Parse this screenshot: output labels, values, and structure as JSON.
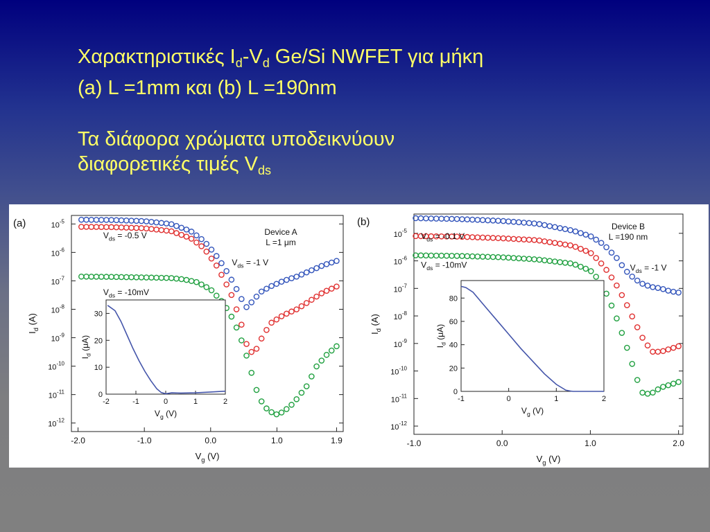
{
  "slide": {
    "title_line1_parts": [
      "Χαρακτηριστικές I",
      "d",
      "-V",
      "d",
      " Ge/Si NWFET για μήκη"
    ],
    "title_line2": "(a) L =1mm και (b) L =190nm",
    "subtitle_line1": "Τα διάφορα χρώματα υποδεικνύουν",
    "subtitle_line2_parts": [
      "διαφορετικές τιμές V",
      "ds"
    ]
  },
  "colors": {
    "blue": "#3355bb",
    "red": "#e03030",
    "green": "#20a040",
    "inset_line": "#4455aa",
    "title": "#ffff66"
  },
  "chart_data": [
    {
      "type": "scatter",
      "panel_label": "(a)",
      "device_label": [
        "Device A",
        "L =1 μm"
      ],
      "ylabel": "Id (A)",
      "xlabel": "Vg (V)",
      "xlim": [
        -2.1,
        2.0
      ],
      "ylim_log10": [
        -12.3,
        -4.7
      ],
      "xticks": [
        -2.0,
        -1.0,
        0.0,
        1.0,
        1.9
      ],
      "xtick_labels": [
        "-2.0",
        "-1.0",
        "0.0",
        "1.0",
        "1.9"
      ],
      "ytick_exponents": [
        -5,
        -6,
        -7,
        -8,
        -9,
        -10,
        -11,
        -12
      ],
      "annotations": [
        {
          "text": "Vds = -0.5 V",
          "x": -1.62,
          "y_log": -5.5
        },
        {
          "text": "Vds = -1 V",
          "x": 0.32,
          "y_log": -6.45
        },
        {
          "text": "Vds = -10mV",
          "x": -1.62,
          "y_log": -7.5
        }
      ],
      "series": [
        {
          "color_key": "blue",
          "x": [
            -1.95,
            -1.5,
            -1.0,
            -0.6,
            -0.3,
            -0.1,
            0.05,
            0.2,
            0.35,
            0.5,
            0.55,
            0.6,
            0.75,
            0.9,
            1.1,
            1.3,
            1.5,
            1.7,
            1.9
          ],
          "log_y": [
            -4.85,
            -4.86,
            -4.9,
            -5.0,
            -5.25,
            -5.6,
            -6.0,
            -6.5,
            -7.1,
            -7.8,
            -7.95,
            -7.8,
            -7.4,
            -7.2,
            -7.0,
            -6.85,
            -6.65,
            -6.45,
            -6.3
          ]
        },
        {
          "color_key": "red",
          "x": [
            -1.95,
            -1.5,
            -1.0,
            -0.6,
            -0.3,
            -0.1,
            0.1,
            0.3,
            0.45,
            0.55,
            0.65,
            0.75,
            0.9,
            1.1,
            1.3,
            1.5,
            1.7,
            1.9
          ],
          "log_y": [
            -5.1,
            -5.11,
            -5.15,
            -5.25,
            -5.5,
            -5.85,
            -6.5,
            -7.4,
            -8.4,
            -9.3,
            -9.6,
            -9.1,
            -8.5,
            -8.2,
            -8.0,
            -7.7,
            -7.4,
            -7.2
          ]
        },
        {
          "color_key": "green",
          "x": [
            -1.95,
            -1.5,
            -1.0,
            -0.6,
            -0.4,
            -0.2,
            0.0,
            0.2,
            0.35,
            0.5,
            0.6,
            0.7,
            0.8,
            0.9,
            1.0,
            1.1,
            1.25,
            1.45,
            1.6,
            1.75,
            1.9
          ],
          "log_y": [
            -6.85,
            -6.86,
            -6.88,
            -6.9,
            -6.95,
            -7.05,
            -7.3,
            -7.8,
            -8.4,
            -9.3,
            -10.1,
            -10.9,
            -11.4,
            -11.6,
            -11.7,
            -11.6,
            -11.3,
            -10.7,
            -10.0,
            -9.6,
            -9.3
          ]
        }
      ],
      "inset": {
        "type": "line",
        "ylabel": "Id (μA)",
        "xlabel": "Vg (V)",
        "xlim": [
          -2,
          2
        ],
        "ylim": [
          0,
          35
        ],
        "xticks": [
          -2,
          -1,
          0,
          1,
          2
        ],
        "yticks": [
          0,
          10,
          20,
          30
        ],
        "x": [
          -1.95,
          -1.7,
          -1.5,
          -1.3,
          -1.1,
          -0.9,
          -0.7,
          -0.5,
          -0.3,
          -0.15,
          0.0,
          0.2,
          0.5,
          1.0,
          1.5,
          2.0
        ],
        "y": [
          33,
          31,
          27,
          22,
          17,
          12.5,
          8.5,
          5,
          2,
          0.6,
          0.15,
          0.5,
          0.4,
          0.5,
          0.8,
          1.1
        ]
      }
    },
    {
      "type": "scatter",
      "panel_label": "(b)",
      "device_label": [
        "Device B",
        "L =190 nm"
      ],
      "ylabel": "Id (A)",
      "xlabel": "Vg (V)",
      "xlim": [
        -1.0,
        2.05
      ],
      "ylim_log10": [
        -12.3,
        -4.3
      ],
      "xticks": [
        -1.0,
        0.0,
        1.0,
        2.0
      ],
      "xtick_labels": [
        "-1.0",
        "0.0",
        "1.0",
        "2.0"
      ],
      "ytick_exponents": [
        -5,
        -6,
        -7,
        -8,
        -9,
        -10,
        -11,
        -12
      ],
      "annotations": [
        {
          "text": "Vds = -0.1 V",
          "x": -0.92,
          "y_log": -5.2
        },
        {
          "text": "Vds = -1 V",
          "x": 1.45,
          "y_log": -6.35
        },
        {
          "text": "Vds = -10mV",
          "x": -0.92,
          "y_log": -6.25
        }
      ],
      "series": [
        {
          "color_key": "blue",
          "x": [
            -0.98,
            -0.5,
            0.0,
            0.4,
            0.8,
            1.0,
            1.15,
            1.3,
            1.4,
            1.5,
            1.6,
            1.7,
            1.8,
            1.9,
            2.0
          ],
          "log_y": [
            -4.45,
            -4.48,
            -4.55,
            -4.65,
            -4.9,
            -5.1,
            -5.4,
            -5.9,
            -6.35,
            -6.65,
            -6.85,
            -6.95,
            -7.0,
            -7.1,
            -7.15
          ]
        },
        {
          "color_key": "red",
          "x": [
            -0.98,
            -0.5,
            0.0,
            0.4,
            0.8,
            1.0,
            1.1,
            1.2,
            1.3,
            1.4,
            1.5,
            1.6,
            1.7,
            1.8,
            1.9,
            2.0
          ],
          "log_y": [
            -5.1,
            -5.12,
            -5.18,
            -5.25,
            -5.45,
            -5.7,
            -6.0,
            -6.4,
            -6.9,
            -7.5,
            -8.2,
            -8.85,
            -9.3,
            -9.3,
            -9.2,
            -9.1
          ]
        },
        {
          "color_key": "green",
          "x": [
            -0.98,
            -0.5,
            0.0,
            0.4,
            0.8,
            1.0,
            1.1,
            1.2,
            1.3,
            1.4,
            1.5,
            1.55,
            1.6,
            1.7,
            1.8,
            1.9,
            2.0
          ],
          "log_y": [
            -5.8,
            -5.82,
            -5.87,
            -5.95,
            -6.1,
            -6.35,
            -6.7,
            -7.3,
            -8.1,
            -9.0,
            -10.0,
            -10.5,
            -10.85,
            -10.8,
            -10.6,
            -10.5,
            -10.4
          ]
        }
      ],
      "inset": {
        "type": "line",
        "ylabel": "Id (μA)",
        "xlabel": "Vg (V)",
        "xlim": [
          -1,
          2
        ],
        "ylim": [
          0,
          95
        ],
        "xticks": [
          -1,
          0,
          1,
          2
        ],
        "yticks": [
          0,
          20,
          40,
          60,
          80
        ],
        "x": [
          -1.0,
          -0.9,
          -0.75,
          -0.5,
          -0.25,
          0.0,
          0.25,
          0.5,
          0.75,
          1.0,
          1.2,
          1.3,
          1.35,
          1.5,
          2.0
        ],
        "y": [
          90,
          89,
          85,
          73,
          61,
          49,
          37,
          26,
          15,
          6,
          1,
          0.3,
          0,
          0,
          0
        ]
      }
    }
  ]
}
